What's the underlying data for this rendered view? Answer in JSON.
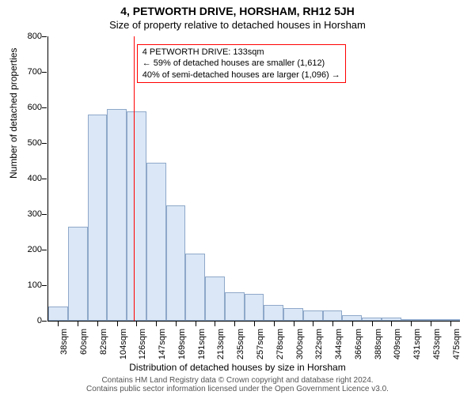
{
  "title": "4, PETWORTH DRIVE, HORSHAM, RH12 5JH",
  "subtitle": "Size of property relative to detached houses in Horsham",
  "yaxis_title": "Number of detached properties",
  "xaxis_title": "Distribution of detached houses by size in Horsham",
  "footer_line1": "Contains HM Land Registry data © Crown copyright and database right 2024.",
  "footer_line2": "Contains public sector information licensed under the Open Government Licence v3.0.",
  "chart": {
    "type": "histogram",
    "ylim": [
      0,
      800
    ],
    "ytick_step": 100,
    "bar_fill": "#dbe7f6",
    "bar_stroke": "#8ea8c9",
    "background": "#ffffff",
    "categories": [
      "38sqm",
      "60sqm",
      "82sqm",
      "104sqm",
      "126sqm",
      "147sqm",
      "169sqm",
      "191sqm",
      "213sqm",
      "235sqm",
      "257sqm",
      "278sqm",
      "300sqm",
      "322sqm",
      "344sqm",
      "366sqm",
      "388sqm",
      "409sqm",
      "431sqm",
      "453sqm",
      "475sqm"
    ],
    "values": [
      40,
      265,
      580,
      595,
      590,
      445,
      325,
      190,
      125,
      80,
      75,
      45,
      35,
      30,
      30,
      15,
      10,
      10,
      5,
      5,
      5
    ],
    "reference": {
      "index": 4,
      "fraction": 0.35,
      "color": "#ff0000",
      "lines": [
        "4 PETWORTH DRIVE: 133sqm",
        "← 59% of detached houses are smaller (1,612)",
        "40% of semi-detached houses are larger (1,096) →"
      ]
    }
  }
}
